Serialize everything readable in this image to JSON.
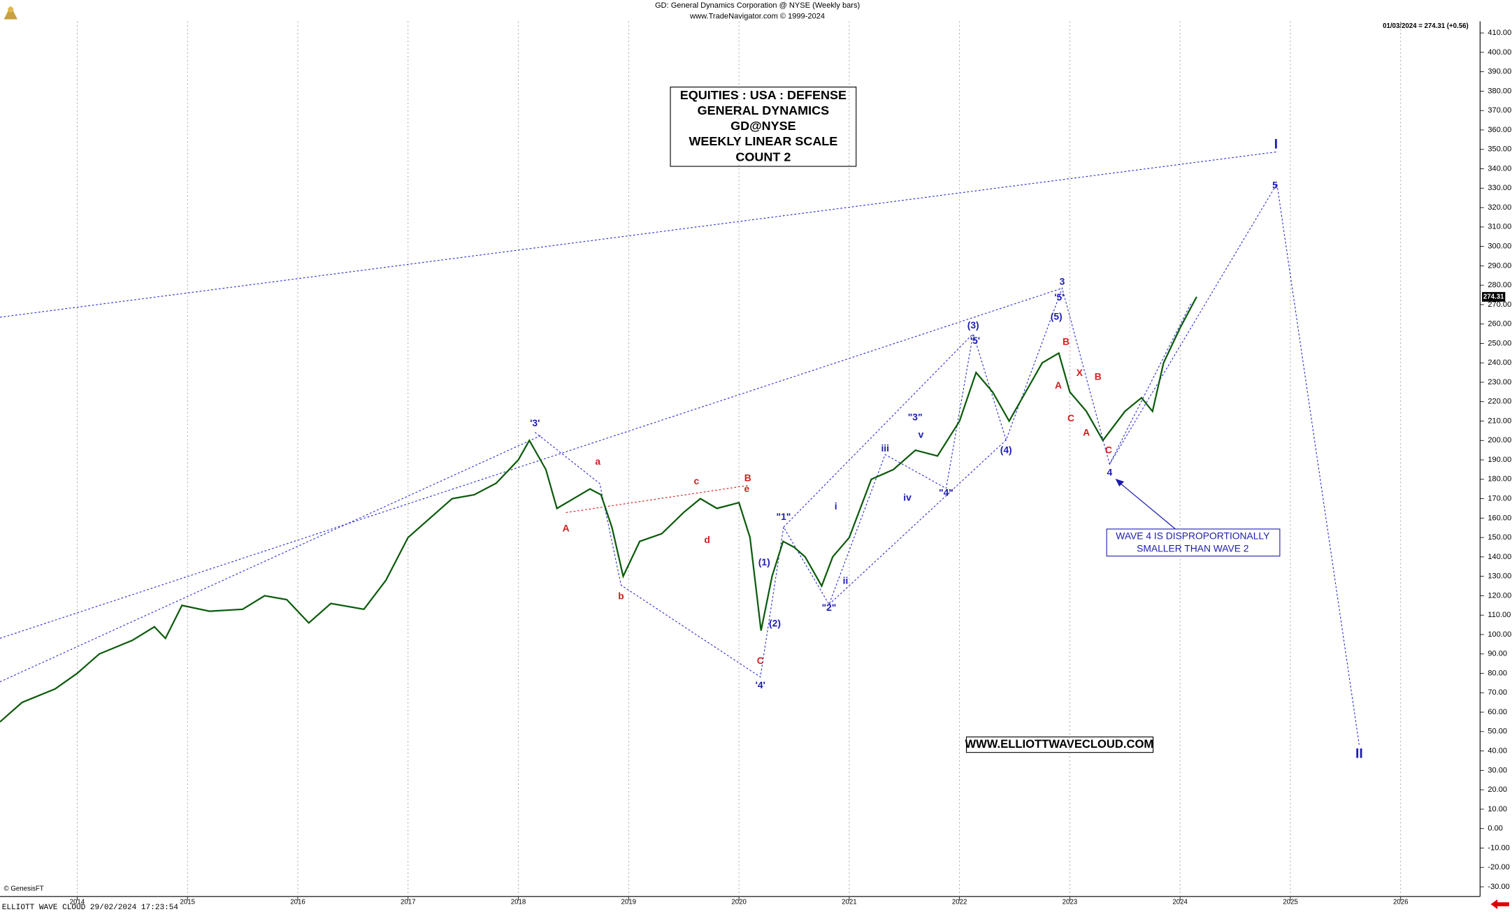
{
  "chart_data": {
    "type": "line",
    "title": "GD:  General Dynamics Corporation @ NYSE  (Weekly bars)",
    "subtitle": "www.TradeNavigator.com © 1999-2024",
    "last_quote": "01/03/2024 = 274.31 (+0.56)",
    "last_price_label": "274.31",
    "box_lines": [
      "EQUITIES : USA : DEFENSE",
      "GENERAL DYNAMICS",
      "GD@NYSE",
      "WEEKLY LINEAR SCALE",
      "COUNT 2"
    ],
    "website": "WWW.ELLIOTTWAVECLOUD.COM",
    "note_lines": [
      "WAVE 4 IS DISPROPORTIONALLY",
      "SMALLER THAN WAVE 2"
    ],
    "copyright": "© GenesisFT",
    "footer": "ELLIOTT WAVE CLOUD   29/02/2024 17:23:54",
    "color": "#0a5a0a",
    "grid": "x",
    "annotations": [
      {
        "text": "'3'",
        "color": "#1c1cb0"
      },
      {
        "text": "'4'",
        "color": "#1c1cb0"
      },
      {
        "text": "(1)",
        "color": "#1c1cb0"
      },
      {
        "text": "(2)",
        "color": "#1c1cb0"
      },
      {
        "text": "\"1\"",
        "color": "#1c1cb0"
      },
      {
        "text": "\"2\"",
        "color": "#1c1cb0"
      },
      {
        "text": "i",
        "color": "#1c1cb0"
      },
      {
        "text": "ii",
        "color": "#1c1cb0"
      },
      {
        "text": "iii",
        "color": "#1c1cb0"
      },
      {
        "text": "iv",
        "color": "#1c1cb0"
      },
      {
        "text": "\"3\"",
        "color": "#1c1cb0"
      },
      {
        "text": "v",
        "color": "#1c1cb0"
      },
      {
        "text": "\"4\"",
        "color": "#1c1cb0"
      },
      {
        "text": "(3)",
        "color": "#1c1cb0"
      },
      {
        "text": "'5'",
        "color": "#1c1cb0"
      },
      {
        "text": "(4)",
        "color": "#1c1cb0"
      },
      {
        "text": "3",
        "color": "#1c1cb0"
      },
      {
        "text": "'5'",
        "color": "#1c1cb0"
      },
      {
        "text": "(5)",
        "color": "#1c1cb0"
      },
      {
        "text": "4",
        "color": "#1c1cb0"
      },
      {
        "text": "5",
        "color": "#1c1cb0"
      },
      {
        "text": "I",
        "color": "#1c1cb0"
      },
      {
        "text": "II",
        "color": "#1c1cb0"
      },
      {
        "text": "a",
        "color": "#d02020"
      },
      {
        "text": "A",
        "color": "#d02020"
      },
      {
        "text": "b",
        "color": "#d02020"
      },
      {
        "text": "c",
        "color": "#d02020"
      },
      {
        "text": "d",
        "color": "#d02020"
      },
      {
        "text": "B",
        "color": "#d02020"
      },
      {
        "text": "e",
        "color": "#d02020"
      },
      {
        "text": "C",
        "color": "#d02020"
      },
      {
        "text": "B",
        "color": "#d02020"
      },
      {
        "text": "A",
        "color": "#d02020"
      },
      {
        "text": "X",
        "color": "#d02020"
      },
      {
        "text": "C",
        "color": "#d02020"
      },
      {
        "text": "B",
        "color": "#d02020"
      },
      {
        "text": "A",
        "color": "#d02020"
      },
      {
        "text": "C",
        "color": "#d02020"
      }
    ],
    "x": [
      2013.3,
      2013.5,
      2013.8,
      2014.0,
      2014.2,
      2014.5,
      2014.7,
      2014.8,
      2014.95,
      2015.2,
      2015.5,
      2015.7,
      2015.9,
      2016.1,
      2016.3,
      2016.6,
      2016.8,
      2017.0,
      2017.2,
      2017.4,
      2017.6,
      2017.8,
      2018.0,
      2018.1,
      2018.25,
      2018.35,
      2018.5,
      2018.65,
      2018.75,
      2018.85,
      2018.95,
      2019.1,
      2019.3,
      2019.5,
      2019.65,
      2019.8,
      2020.0,
      2020.1,
      2020.2,
      2020.3,
      2020.4,
      2020.5,
      2020.6,
      2020.75,
      2020.85,
      2021.0,
      2021.2,
      2021.4,
      2021.6,
      2021.8,
      2022.0,
      2022.15,
      2022.3,
      2022.45,
      2022.6,
      2022.75,
      2022.9,
      2023.0,
      2023.15,
      2023.3,
      2023.5,
      2023.65,
      2023.75,
      2023.85,
      2024.0,
      2024.15
    ],
    "values": [
      55,
      65,
      72,
      80,
      90,
      97,
      104,
      98,
      115,
      112,
      113,
      120,
      118,
      106,
      116,
      113,
      128,
      150,
      160,
      170,
      172,
      178,
      190,
      200,
      185,
      165,
      170,
      175,
      172,
      155,
      130,
      148,
      152,
      163,
      170,
      165,
      168,
      150,
      102,
      130,
      148,
      145,
      140,
      125,
      140,
      150,
      180,
      185,
      195,
      192,
      210,
      235,
      225,
      210,
      225,
      240,
      245,
      225,
      215,
      200,
      215,
      222,
      215,
      240,
      258,
      274
    ],
    "xlim": [
      2013.3,
      2026.72
    ],
    "xticks": [
      2014,
      2015,
      2016,
      2017,
      2018,
      2019,
      2020,
      2021,
      2022,
      2023,
      2024,
      2025,
      2026
    ],
    "ylim": [
      -34,
      416
    ],
    "yticks": [
      {
        "value": 410,
        "label": "410.00"
      },
      {
        "value": 400,
        "label": "400.00"
      },
      {
        "value": 390,
        "label": "390.00"
      },
      {
        "value": 380,
        "label": "380.00"
      },
      {
        "value": 370,
        "label": "370.00"
      },
      {
        "value": 360,
        "label": "360.00"
      },
      {
        "value": 350,
        "label": "350.00"
      },
      {
        "value": 340,
        "label": "340.00"
      },
      {
        "value": 330,
        "label": "330.00"
      },
      {
        "value": 320,
        "label": "320.00"
      },
      {
        "value": 310,
        "label": "310.00"
      },
      {
        "value": 300,
        "label": "300.00"
      },
      {
        "value": 290,
        "label": "290.00"
      },
      {
        "value": 280,
        "label": "280.00"
      },
      {
        "value": 270,
        "label": "270.00"
      },
      {
        "value": 260,
        "label": "260.00"
      },
      {
        "value": 250,
        "label": "250.00"
      },
      {
        "value": 240,
        "label": "240.00"
      },
      {
        "value": 230,
        "label": "230.00"
      },
      {
        "value": 220,
        "label": "220.00"
      },
      {
        "value": 210,
        "label": "210.00"
      },
      {
        "value": 200,
        "label": "200.00"
      },
      {
        "value": 190,
        "label": "190.00"
      },
      {
        "value": 180,
        "label": "180.00"
      },
      {
        "value": 170,
        "label": "170.00"
      },
      {
        "value": 160,
        "label": "160.00"
      },
      {
        "value": 150,
        "label": "150.00"
      },
      {
        "value": 140,
        "label": "140.00"
      },
      {
        "value": 130,
        "label": "130.00"
      },
      {
        "value": 120,
        "label": "120.00"
      },
      {
        "value": 110,
        "label": "110.00"
      },
      {
        "value": 100,
        "label": "100.00"
      },
      {
        "value": 90,
        "label": "90.00"
      },
      {
        "value": 80,
        "label": "80.00"
      },
      {
        "value": 70,
        "label": "70.00"
      },
      {
        "value": 60,
        "label": "60.00"
      },
      {
        "value": 50,
        "label": "50.00"
      },
      {
        "value": 40,
        "label": "40.00"
      },
      {
        "value": 30,
        "label": "30.00"
      },
      {
        "value": 20,
        "label": "20.00"
      },
      {
        "value": 10,
        "label": "10.00"
      },
      {
        "value": 0,
        "label": "0.00"
      },
      {
        "value": -10,
        "label": "-10.00"
      },
      {
        "value": -20,
        "label": "-20.00"
      },
      {
        "value": -30,
        "label": "-30.00"
      }
    ]
  }
}
